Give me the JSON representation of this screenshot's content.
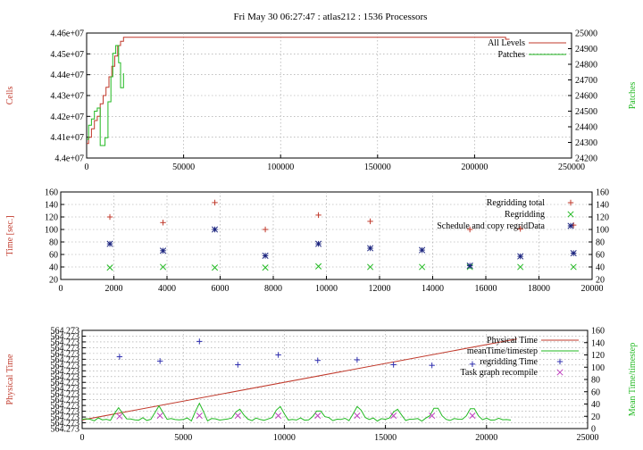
{
  "title": "Fri May 30 06:27:47 : atlas212 : 1536 Processors",
  "colors": {
    "red": "#c0392b",
    "green": "#22b922",
    "blue": "#1a237e",
    "purple": "#c040c0",
    "plus_blue": "#3030b0"
  },
  "chart_data": [
    {
      "type": "line",
      "ylabel": "Cells",
      "y2label": "Patches",
      "xlim": [
        0,
        250000
      ],
      "ylim": [
        44000000,
        44600000
      ],
      "y2lim": [
        24200,
        25000
      ],
      "xticks": [
        "0",
        "50000",
        "100000",
        "150000",
        "200000",
        "250000"
      ],
      "yticks": [
        "4.4e+07",
        "4.41e+07",
        "4.42e+07",
        "4.43e+07",
        "4.44e+07",
        "4.45e+07",
        "4.46e+07"
      ],
      "y2ticks": [
        "24200",
        "24300",
        "24400",
        "24500",
        "24600",
        "24700",
        "24800",
        "24900",
        "25000"
      ],
      "legend_position": "top-right",
      "grid": true,
      "series": [
        {
          "name": "All Levels",
          "color": "#c0392b",
          "axis": "left",
          "points": [
            [
              0,
              44070000
            ],
            [
              1000,
              44070000
            ],
            [
              1000,
              44100000
            ],
            [
              2500,
              44100000
            ],
            [
              2500,
              44140000
            ],
            [
              4000,
              44140000
            ],
            [
              4000,
              44180000
            ],
            [
              5500,
              44180000
            ],
            [
              5500,
              44200000
            ],
            [
              7000,
              44200000
            ],
            [
              7000,
              44260000
            ],
            [
              8500,
              44260000
            ],
            [
              8500,
              44300000
            ],
            [
              10000,
              44300000
            ],
            [
              10000,
              44340000
            ],
            [
              11500,
              44340000
            ],
            [
              11500,
              44390000
            ],
            [
              13000,
              44390000
            ],
            [
              13000,
              44440000
            ],
            [
              14500,
              44440000
            ],
            [
              14500,
              44490000
            ],
            [
              16000,
              44490000
            ],
            [
              16000,
              44540000
            ],
            [
              17500,
              44540000
            ],
            [
              17500,
              44560000
            ],
            [
              19000,
              44560000
            ],
            [
              19000,
              44580000
            ],
            [
              216000,
              44580000
            ],
            [
              216000,
              44570000
            ],
            [
              218000,
              44570000
            ]
          ]
        },
        {
          "name": "Patches",
          "color": "#22b922",
          "axis": "right",
          "points": [
            [
              0,
              24320
            ],
            [
              1000,
              24320
            ],
            [
              1000,
              24410
            ],
            [
              2500,
              24410
            ],
            [
              2500,
              24450
            ],
            [
              4000,
              24450
            ],
            [
              4000,
              24500
            ],
            [
              5500,
              24500
            ],
            [
              5500,
              24520
            ],
            [
              7000,
              24520
            ],
            [
              7000,
              24280
            ],
            [
              9500,
              24280
            ],
            [
              9500,
              24330
            ],
            [
              11000,
              24330
            ],
            [
              11000,
              24560
            ],
            [
              12500,
              24560
            ],
            [
              12500,
              24720
            ],
            [
              13500,
              24720
            ],
            [
              13500,
              24870
            ],
            [
              15000,
              24870
            ],
            [
              15000,
              24920
            ],
            [
              16500,
              24920
            ],
            [
              16500,
              24810
            ],
            [
              17500,
              24810
            ],
            [
              17500,
              24650
            ],
            [
              19000,
              24650
            ],
            [
              19000,
              24740
            ],
            [
              19200,
              24740
            ]
          ]
        }
      ]
    },
    {
      "type": "scatter",
      "ylabel": "Time [sec.]",
      "xlim": [
        0,
        20000
      ],
      "ylim": [
        20,
        160
      ],
      "y2lim": [
        20,
        160
      ],
      "xticks": [
        "0",
        "2000",
        "4000",
        "6000",
        "8000",
        "10000",
        "12000",
        "14000",
        "16000",
        "18000",
        "20000"
      ],
      "yticks": [
        "20",
        "40",
        "60",
        "80",
        "100",
        "120",
        "140",
        "160"
      ],
      "y2ticks": [
        "20",
        "40",
        "60",
        "80",
        "100",
        "120",
        "140",
        "160"
      ],
      "legend_position": "top-right",
      "grid": true,
      "series": [
        {
          "name": "Regridding total",
          "color": "#c0392b",
          "marker": "plus",
          "points": [
            [
              1850,
              120
            ],
            [
              3850,
              111
            ],
            [
              5800,
              143
            ],
            [
              7700,
              100
            ],
            [
              9700,
              123
            ],
            [
              11650,
              113
            ],
            [
              15400,
              100
            ],
            [
              17300,
              101
            ],
            [
              19300,
              107
            ]
          ]
        },
        {
          "name": "Regridding",
          "color": "#22b922",
          "marker": "x",
          "points": [
            [
              1850,
              39
            ],
            [
              3850,
              40
            ],
            [
              5800,
              39
            ],
            [
              7700,
              39
            ],
            [
              9700,
              41
            ],
            [
              11650,
              40
            ],
            [
              13600,
              40
            ],
            [
              15400,
              40
            ],
            [
              17300,
              40
            ],
            [
              19300,
              40
            ]
          ]
        },
        {
          "name": "Schedule and copy regridData",
          "color": "#1a237e",
          "marker": "star",
          "points": [
            [
              1850,
              77
            ],
            [
              3850,
              66
            ],
            [
              5800,
              100
            ],
            [
              7700,
              58
            ],
            [
              9700,
              77
            ],
            [
              11650,
              70
            ],
            [
              13600,
              67
            ],
            [
              15400,
              42
            ],
            [
              17300,
              57
            ],
            [
              19300,
              62
            ]
          ]
        }
      ]
    },
    {
      "type": "line",
      "ylabel": "Physical Time",
      "y2label": "Mean Time/timestep",
      "xlim": [
        0,
        25000
      ],
      "ylim": [
        0,
        160
      ],
      "y2lim": [
        0,
        160
      ],
      "xticks": [
        "0",
        "5000",
        "10000",
        "15000",
        "20000",
        "25000"
      ],
      "yticks": [
        "564.273",
        "564.273",
        "564.273",
        "564.273",
        "564.273",
        "564.273",
        "564.273",
        "564.273",
        "564.273",
        "564.273",
        "564.273",
        "564.273",
        "564.273",
        "564.273",
        "564.273",
        "564.273",
        "564.273",
        "564.273"
      ],
      "y2ticks": [
        "0",
        "20",
        "40",
        "60",
        "80",
        "100",
        "120",
        "140",
        "160"
      ],
      "legend_position": "top-right",
      "grid": true,
      "series": [
        {
          "name": "Physical Time",
          "color": "#c0392b",
          "marker": "line",
          "points": [
            [
              0,
              14
            ],
            [
              21500,
              146
            ]
          ]
        },
        {
          "name": "meanTime/timestep",
          "color": "#22b922",
          "marker": "line",
          "base": 15,
          "end": 21200,
          "spikes": [
            [
              1800,
              34
            ],
            [
              3800,
              37
            ],
            [
              5800,
              41
            ],
            [
              7750,
              34
            ],
            [
              9750,
              39
            ],
            [
              11700,
              33
            ],
            [
              13650,
              39
            ],
            [
              15550,
              34
            ],
            [
              17500,
              39
            ],
            [
              19300,
              38
            ]
          ]
        },
        {
          "name": "regridding Time",
          "color": "#3030b0",
          "marker": "plus",
          "points": [
            [
              1850,
              117
            ],
            [
              3850,
              110
            ],
            [
              5800,
              142
            ],
            [
              7700,
              104
            ],
            [
              9700,
              120
            ],
            [
              11650,
              111
            ],
            [
              13600,
              112
            ],
            [
              15400,
              104
            ],
            [
              17300,
              103
            ],
            [
              19300,
              105
            ]
          ]
        },
        {
          "name": "Task graph recompile",
          "color": "#c040c0",
          "marker": "x",
          "points": [
            [
              1850,
              20
            ],
            [
              3850,
              21
            ],
            [
              5800,
              21
            ],
            [
              7700,
              21
            ],
            [
              9700,
              21
            ],
            [
              11650,
              21
            ],
            [
              13600,
              21
            ],
            [
              15400,
              21
            ],
            [
              17300,
              21
            ],
            [
              19300,
              21
            ]
          ]
        }
      ]
    }
  ]
}
